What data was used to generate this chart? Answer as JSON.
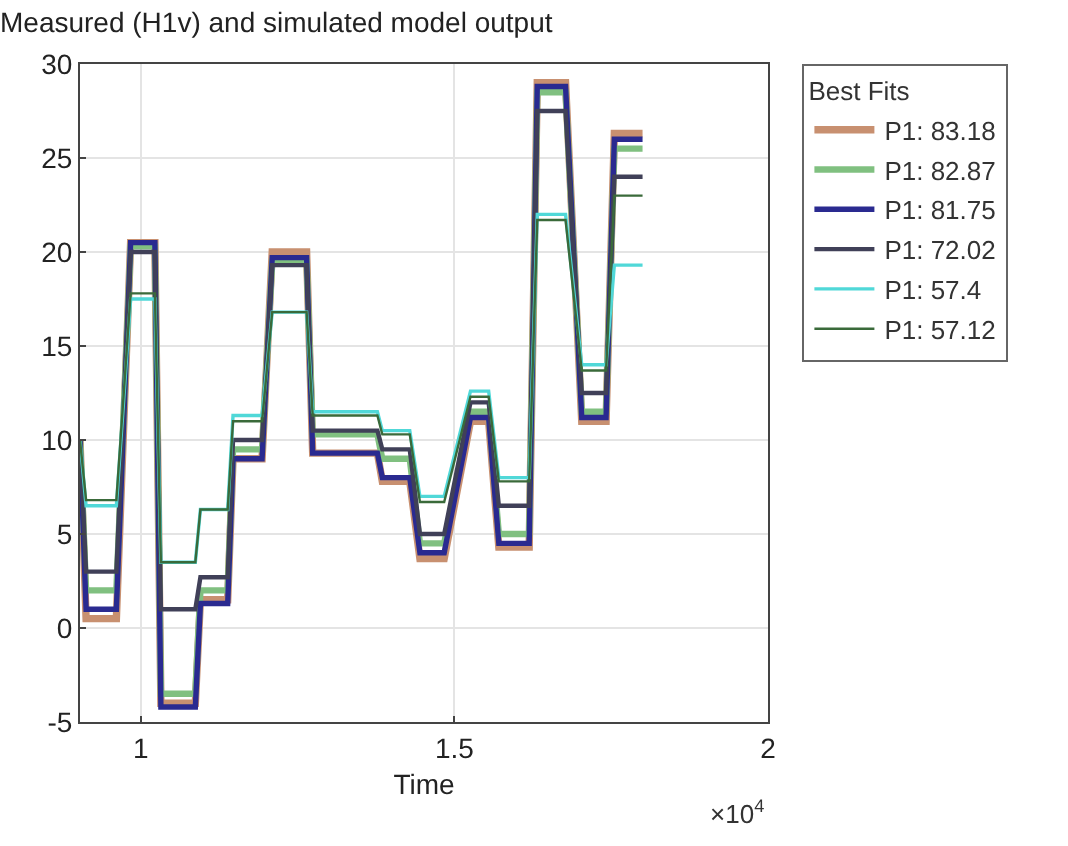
{
  "chart_data": {
    "type": "line",
    "title": "Measured (H1v) and simulated model output",
    "xlabel": "Time",
    "legend_title": "Best Fits",
    "legend": "right",
    "grid": true,
    "marker": "none",
    "line_style": "solid",
    "annotations": [
      "×10$^{4}$"
    ],
    "xlim": [
      0.903,
      2
    ],
    "xticks": [
      1,
      1.5,
      2
    ],
    "ylim": [
      -5,
      30
    ],
    "yticks": [
      -5,
      0,
      5,
      10,
      15,
      20,
      25,
      30
    ],
    "x": [
      0.903,
      0.9127,
      0.961,
      0.9837,
      1.0224,
      1.032,
      1.0869,
      1.095,
      1.1385,
      1.147,
      1.1933,
      1.2095,
      1.2643,
      1.274,
      1.3772,
      1.385,
      1.4288,
      1.445,
      1.4837,
      1.5256,
      1.5546,
      1.5708,
      1.6192,
      1.6321,
      1.6772,
      1.703,
      1.7418,
      1.755,
      1.8
    ],
    "series": [
      {
        "name": "P1: 83.18",
        "color": "#c89070",
        "values": [
          10,
          0.5,
          0.5,
          20.5,
          20.5,
          -4,
          -4,
          1.5,
          1.5,
          9,
          9,
          20,
          20,
          9.3,
          9.3,
          7.8,
          7.8,
          3.7,
          3.7,
          11,
          11,
          4.3,
          4.3,
          29,
          29,
          11,
          11,
          26.3,
          26.3
        ]
      },
      {
        "name": "P1: 82.87",
        "color": "#80c080",
        "values": [
          10,
          2,
          2,
          20.3,
          20.3,
          -3.5,
          -3.5,
          2,
          2,
          9.5,
          9.5,
          19.5,
          19.5,
          10.3,
          10.3,
          9,
          9,
          4.5,
          4.5,
          11.5,
          11.5,
          5,
          5,
          28.5,
          28.5,
          11.5,
          11.5,
          25.5,
          25.5
        ]
      },
      {
        "name": "P1: 81.75",
        "color": "#2a2a90",
        "values": [
          10,
          1,
          1,
          20.5,
          20.5,
          -4.2,
          -4.2,
          1.3,
          1.3,
          9,
          9,
          19.7,
          19.7,
          9.3,
          9.3,
          8,
          8,
          4,
          4,
          11.2,
          11.2,
          4.5,
          4.5,
          28.8,
          28.8,
          11.2,
          11.2,
          26,
          26
        ]
      },
      {
        "name": "P1: 72.02",
        "color": "#404058",
        "values": [
          10,
          3,
          3,
          20,
          20,
          1,
          1,
          2.7,
          2.7,
          10,
          10,
          19.3,
          19.3,
          10.5,
          10.5,
          9.5,
          9.5,
          5,
          5,
          12,
          12,
          6.5,
          6.5,
          27.5,
          27.5,
          12.5,
          12.5,
          24,
          24
        ]
      },
      {
        "name": "P1: 57.4",
        "color": "#50d8d8",
        "values": [
          10,
          6.5,
          6.5,
          17.5,
          17.5,
          3.5,
          3.5,
          6.3,
          6.3,
          11.3,
          11.3,
          16.8,
          16.8,
          11.5,
          11.5,
          10.5,
          10.5,
          7,
          7,
          12.6,
          12.6,
          8,
          8,
          22,
          22,
          14,
          14,
          19.3,
          19.3
        ]
      },
      {
        "name": "P1: 57.12",
        "color": "#3a6a3a",
        "values": [
          10,
          6.8,
          6.8,
          17.8,
          17.8,
          3.5,
          3.5,
          6.3,
          6.3,
          11,
          11,
          16.8,
          16.8,
          11.3,
          11.3,
          10.3,
          10.3,
          6.7,
          6.7,
          12.3,
          12.3,
          7.8,
          7.8,
          21.7,
          21.7,
          13.7,
          13.7,
          23,
          23
        ]
      }
    ]
  }
}
